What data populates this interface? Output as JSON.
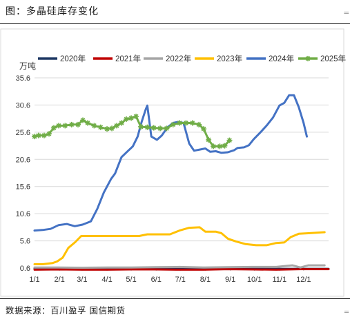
{
  "figure": {
    "title": "图：多晶硅库存变化",
    "source": "数据来源：百川盈孚  国信期货",
    "edge_top": "‗",
    "edge_bottom": "‗"
  },
  "chart_data": {
    "type": "line",
    "ylabel": "万吨",
    "ylim": [
      0.6,
      35.6
    ],
    "yticks": [
      "35.6",
      "30.6",
      "25.6",
      "20.6",
      "15.6",
      "10.6",
      "5.6",
      "0.6"
    ],
    "xticks": [
      "1/1",
      "2/1",
      "3/1",
      "4/1",
      "5/1",
      "6/1",
      "7/1",
      "8/1",
      "9/1",
      "10/1",
      "11/1",
      "12/1"
    ],
    "xlim_days": [
      0,
      365
    ],
    "grid": "horizontal",
    "legend": "top",
    "series": [
      {
        "name": "2020年",
        "color": "#1f3864",
        "marker": "none",
        "points": [
          [
            0,
            0.55
          ],
          [
            30,
            0.5
          ],
          [
            60,
            0.5
          ],
          [
            90,
            0.45
          ],
          [
            120,
            0.45
          ],
          [
            150,
            0.45
          ],
          [
            180,
            0.5
          ],
          [
            210,
            0.5
          ],
          [
            240,
            0.5
          ],
          [
            270,
            0.5
          ],
          [
            300,
            0.45
          ],
          [
            330,
            0.45
          ],
          [
            365,
            0.45
          ]
        ]
      },
      {
        "name": "2021年",
        "color": "#c00000",
        "marker": "none",
        "points": [
          [
            0,
            0.3
          ],
          [
            30,
            0.35
          ],
          [
            60,
            0.3
          ],
          [
            90,
            0.3
          ],
          [
            120,
            0.35
          ],
          [
            150,
            0.35
          ],
          [
            180,
            0.3
          ],
          [
            210,
            0.3
          ],
          [
            240,
            0.4
          ],
          [
            270,
            0.35
          ],
          [
            300,
            0.3
          ],
          [
            330,
            0.4
          ],
          [
            365,
            0.4
          ]
        ]
      },
      {
        "name": "2022年",
        "color": "#a6a6a6",
        "marker": "none",
        "points": [
          [
            0,
            0.7
          ],
          [
            30,
            0.7
          ],
          [
            60,
            0.65
          ],
          [
            90,
            0.7
          ],
          [
            120,
            0.7
          ],
          [
            150,
            0.75
          ],
          [
            180,
            0.8
          ],
          [
            210,
            0.7
          ],
          [
            240,
            0.75
          ],
          [
            270,
            0.8
          ],
          [
            300,
            0.8
          ],
          [
            320,
            1.1
          ],
          [
            330,
            0.7
          ],
          [
            340,
            1.1
          ],
          [
            360,
            1.1
          ]
        ]
      },
      {
        "name": "2023年",
        "color": "#ffc000",
        "marker": "none",
        "points": [
          [
            0,
            1.3
          ],
          [
            10,
            1.3
          ],
          [
            22,
            1.5
          ],
          [
            28,
            1.8
          ],
          [
            35,
            2.5
          ],
          [
            42,
            4.3
          ],
          [
            50,
            5.3
          ],
          [
            58,
            6.5
          ],
          [
            70,
            6.5
          ],
          [
            90,
            6.5
          ],
          [
            110,
            6.5
          ],
          [
            130,
            6.5
          ],
          [
            140,
            6.8
          ],
          [
            155,
            6.8
          ],
          [
            168,
            6.8
          ],
          [
            180,
            7.5
          ],
          [
            192,
            8.0
          ],
          [
            205,
            8.1
          ],
          [
            212,
            7.3
          ],
          [
            225,
            7.3
          ],
          [
            232,
            7.0
          ],
          [
            240,
            6.0
          ],
          [
            250,
            5.5
          ],
          [
            262,
            5.0
          ],
          [
            275,
            4.8
          ],
          [
            288,
            4.8
          ],
          [
            300,
            5.2
          ],
          [
            310,
            5.3
          ],
          [
            318,
            6.3
          ],
          [
            328,
            6.9
          ],
          [
            340,
            7.0
          ],
          [
            350,
            7.1
          ],
          [
            360,
            7.2
          ]
        ]
      },
      {
        "name": "2024年",
        "color": "#4472c4",
        "marker": "none",
        "points": [
          [
            0,
            7.5
          ],
          [
            10,
            7.6
          ],
          [
            20,
            7.8
          ],
          [
            30,
            8.5
          ],
          [
            40,
            8.7
          ],
          [
            50,
            8.3
          ],
          [
            60,
            8.6
          ],
          [
            70,
            9.2
          ],
          [
            78,
            11.5
          ],
          [
            86,
            14.5
          ],
          [
            95,
            17.0
          ],
          [
            100,
            18.0
          ],
          [
            108,
            21.0
          ],
          [
            115,
            22.0
          ],
          [
            122,
            23.0
          ],
          [
            128,
            24.8
          ],
          [
            133,
            27.5
          ],
          [
            138,
            29.8
          ],
          [
            140,
            30.5
          ],
          [
            145,
            24.8
          ],
          [
            152,
            24.2
          ],
          [
            158,
            25.0
          ],
          [
            165,
            26.5
          ],
          [
            172,
            27.3
          ],
          [
            178,
            27.5
          ],
          [
            185,
            27.3
          ],
          [
            192,
            23.5
          ],
          [
            198,
            22.2
          ],
          [
            205,
            22.4
          ],
          [
            212,
            22.6
          ],
          [
            218,
            22.0
          ],
          [
            225,
            22.1
          ],
          [
            232,
            21.8
          ],
          [
            240,
            21.9
          ],
          [
            248,
            22.3
          ],
          [
            252,
            22.7
          ],
          [
            260,
            22.8
          ],
          [
            266,
            23.2
          ],
          [
            272,
            24.3
          ],
          [
            280,
            25.5
          ],
          [
            288,
            26.8
          ],
          [
            296,
            28.3
          ],
          [
            304,
            30.5
          ],
          [
            310,
            31.0
          ],
          [
            316,
            32.4
          ],
          [
            322,
            32.4
          ],
          [
            328,
            30.2
          ],
          [
            334,
            27.3
          ],
          [
            338,
            24.8
          ]
        ]
      },
      {
        "name": "2025年",
        "color": "#70ad47",
        "marker": "star",
        "points": [
          [
            0,
            24.8
          ],
          [
            5,
            25.0
          ],
          [
            12,
            25.0
          ],
          [
            18,
            25.3
          ],
          [
            24,
            26.4
          ],
          [
            30,
            26.8
          ],
          [
            38,
            26.8
          ],
          [
            46,
            27.0
          ],
          [
            54,
            27.0
          ],
          [
            60,
            27.8
          ],
          [
            66,
            27.3
          ],
          [
            74,
            26.8
          ],
          [
            82,
            26.5
          ],
          [
            90,
            26.2
          ],
          [
            96,
            26.3
          ],
          [
            102,
            26.8
          ],
          [
            108,
            27.3
          ],
          [
            114,
            28.0
          ],
          [
            120,
            28.2
          ],
          [
            126,
            28.5
          ],
          [
            132,
            26.6
          ],
          [
            140,
            26.5
          ],
          [
            148,
            26.4
          ],
          [
            156,
            26.3
          ],
          [
            164,
            26.3
          ],
          [
            172,
            27.0
          ],
          [
            180,
            27.3
          ],
          [
            188,
            27.3
          ],
          [
            196,
            27.3
          ],
          [
            204,
            27.0
          ],
          [
            210,
            26.2
          ],
          [
            216,
            24.2
          ],
          [
            222,
            23.0
          ],
          [
            230,
            23.0
          ],
          [
            236,
            23.1
          ],
          [
            242,
            24.1
          ]
        ]
      }
    ]
  }
}
